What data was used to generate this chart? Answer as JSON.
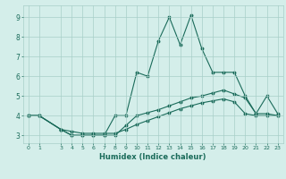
{
  "title": "",
  "xlabel": "Humidex (Indice chaleur)",
  "bg_color": "#d4eeea",
  "grid_color": "#a8cfc8",
  "line_color": "#1a6b5a",
  "x_ticks": [
    0,
    1,
    3,
    4,
    5,
    6,
    7,
    8,
    9,
    10,
    11,
    12,
    13,
    14,
    15,
    16,
    17,
    18,
    19,
    20,
    21,
    22,
    23
  ],
  "y_ticks": [
    3,
    4,
    5,
    6,
    7,
    8,
    9
  ],
  "xlim": [
    -0.5,
    23.5
  ],
  "ylim": [
    2.6,
    9.6
  ],
  "line1_x": [
    0,
    1,
    3,
    4,
    5,
    6,
    7,
    8,
    9,
    10,
    11,
    12,
    13,
    14,
    15,
    16,
    17,
    18,
    19,
    20,
    21,
    22,
    23
  ],
  "line1_y": [
    4.0,
    4.0,
    3.3,
    3.0,
    3.0,
    3.0,
    3.0,
    4.0,
    4.0,
    6.2,
    6.0,
    7.8,
    9.0,
    7.6,
    9.1,
    7.4,
    6.2,
    6.2,
    6.2,
    5.0,
    4.1,
    5.0,
    4.1
  ],
  "line2_x": [
    0,
    1,
    3,
    4,
    5,
    6,
    7,
    8,
    9,
    10,
    11,
    12,
    13,
    14,
    15,
    16,
    17,
    18,
    19,
    20,
    21,
    22,
    23
  ],
  "line2_y": [
    4.0,
    4.0,
    3.3,
    3.0,
    3.0,
    3.0,
    3.0,
    3.0,
    3.5,
    4.0,
    4.15,
    4.3,
    4.5,
    4.7,
    4.9,
    5.0,
    5.15,
    5.3,
    5.1,
    4.9,
    4.1,
    4.1,
    4.0
  ],
  "line3_x": [
    0,
    1,
    3,
    4,
    5,
    6,
    7,
    8,
    9,
    10,
    11,
    12,
    13,
    14,
    15,
    16,
    17,
    18,
    19,
    20,
    21,
    22,
    23
  ],
  "line3_y": [
    4.0,
    4.0,
    3.3,
    3.2,
    3.1,
    3.1,
    3.1,
    3.1,
    3.3,
    3.55,
    3.75,
    3.95,
    4.15,
    4.35,
    4.5,
    4.65,
    4.75,
    4.85,
    4.7,
    4.1,
    4.0,
    4.0,
    4.0
  ]
}
